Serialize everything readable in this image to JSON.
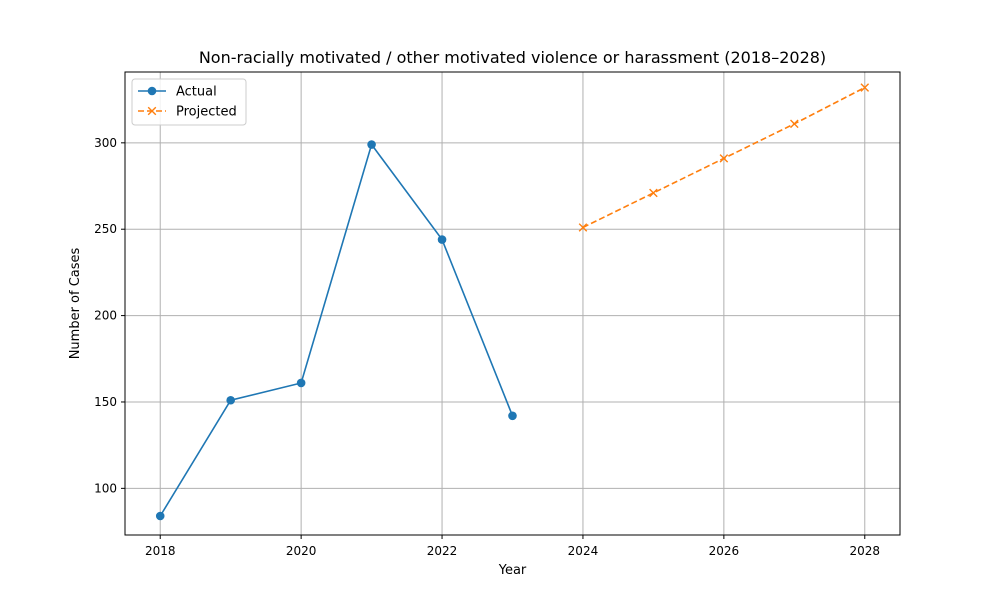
{
  "chart_data": {
    "type": "line",
    "title": "Non-racially motivated / other motivated violence or harassment (2018–2028)",
    "xlabel": "Year",
    "ylabel": "Number of Cases",
    "xlim": [
      2017.5,
      2028.5
    ],
    "ylim": [
      73,
      341
    ],
    "xticks": [
      "2018",
      "2020",
      "2022",
      "2024",
      "2026",
      "2028"
    ],
    "yticks": [
      "100",
      "150",
      "200",
      "250",
      "300"
    ],
    "grid": true,
    "legend_position": "top-left",
    "series": [
      {
        "name": "Actual",
        "color": "#1f77b4",
        "line_style": "solid",
        "marker": "circle",
        "points": [
          {
            "x": 2018,
            "y": 84
          },
          {
            "x": 2019,
            "y": 151
          },
          {
            "x": 2020,
            "y": 161
          },
          {
            "x": 2021,
            "y": 299
          },
          {
            "x": 2022,
            "y": 244
          },
          {
            "x": 2023,
            "y": 142
          }
        ]
      },
      {
        "name": "Projected",
        "color": "#ff7f0e",
        "line_style": "dashed",
        "marker": "x",
        "points": [
          {
            "x": 2024,
            "y": 251
          },
          {
            "x": 2025,
            "y": 271
          },
          {
            "x": 2026,
            "y": 291
          },
          {
            "x": 2027,
            "y": 311
          },
          {
            "x": 2028,
            "y": 332
          }
        ]
      }
    ]
  }
}
